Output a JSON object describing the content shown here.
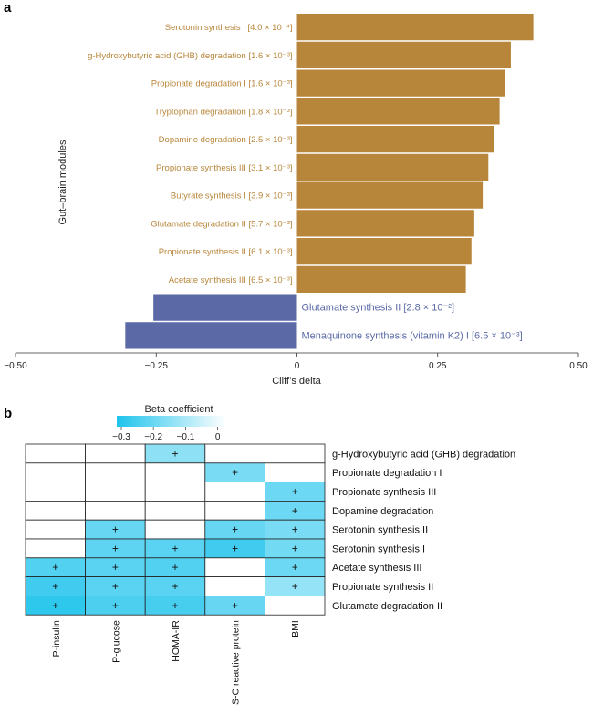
{
  "figure": {
    "panel_a_label": "a",
    "panel_b_label": "b"
  },
  "chart_data": [
    {
      "type": "bar",
      "orientation": "horizontal",
      "xlabel": "Cliff’s delta",
      "ylabel": "Gut–brain modules",
      "xlim": [
        -0.5,
        0.5
      ],
      "xticks": [
        "−0.50",
        "−0.25",
        "0",
        "0.25",
        "0.50"
      ],
      "categories": [
        "Serotonin synthesis I [4.0 × 10⁻⁴]",
        "g-Hydroxybutyric acid (GHB) degradation [1.6 × 10⁻³]",
        "Propionate degradation I [1.6 × 10⁻³]",
        "Tryptophan degradation [1.8 × 10⁻³]",
        "Dopamine degradation [2.5 × 10⁻³]",
        "Propionate synthesis III [3.1 × 10⁻³]",
        "Butyrate synthesis I [3.9 × 10⁻³]",
        "Glutamate degradation II [5.7 × 10⁻³]",
        "Propionate synthesis II [6.1 × 10⁻³]",
        "Acetate synthesis III [6.5 × 10⁻³]",
        "Glutamate synthesis II [2.8 × 10⁻²]",
        "Menaquinone synthesis (vitamin K2) I [6.5 × 10⁻³]"
      ],
      "values": [
        0.42,
        0.38,
        0.37,
        0.36,
        0.35,
        0.34,
        0.33,
        0.315,
        0.31,
        0.3,
        -0.255,
        -0.305
      ],
      "colors": {
        "positive": "#b8863b",
        "negative": "#5b6aa6"
      },
      "grid": false
    },
    {
      "type": "heatmap",
      "colorbar": {
        "title": "Beta coefficient",
        "ticks": [
          "−0.3",
          "−0.2",
          "−0.1",
          "0"
        ],
        "range": [
          -0.3,
          0
        ],
        "colors": [
          "#1ec3ec",
          "#ffffff"
        ]
      },
      "columns": [
        "P-insulin",
        "P-glucose",
        "HOMA-IR",
        "S-C reactive protein",
        "BMI"
      ],
      "rows": [
        "g-Hydroxybutyric acid (GHB) degradation",
        "Propionate degradation I",
        "Propionate synthesis III",
        "Dopamine degradation",
        "Serotonin synthesis II",
        "Serotonin synthesis I",
        "Acetate synthesis III",
        "Propionate synthesis II",
        "Glutamate degradation II"
      ],
      "values": [
        [
          null,
          null,
          -0.12,
          null,
          null
        ],
        [
          null,
          null,
          null,
          -0.15,
          null
        ],
        [
          null,
          null,
          null,
          null,
          -0.17
        ],
        [
          null,
          null,
          null,
          null,
          -0.17
        ],
        [
          null,
          -0.18,
          null,
          -0.18,
          -0.15
        ],
        [
          null,
          -0.19,
          -0.2,
          -0.24,
          -0.16
        ],
        [
          -0.21,
          -0.2,
          -0.21,
          null,
          -0.17
        ],
        [
          -0.24,
          -0.2,
          -0.2,
          null,
          -0.11
        ],
        [
          -0.27,
          -0.22,
          -0.23,
          -0.18,
          null
        ]
      ],
      "significant_marker": "+",
      "significant": [
        [
          false,
          false,
          true,
          false,
          false
        ],
        [
          false,
          false,
          false,
          true,
          false
        ],
        [
          false,
          false,
          false,
          false,
          true
        ],
        [
          false,
          false,
          false,
          false,
          true
        ],
        [
          false,
          true,
          false,
          true,
          true
        ],
        [
          false,
          true,
          true,
          true,
          true
        ],
        [
          true,
          true,
          true,
          false,
          true
        ],
        [
          true,
          true,
          true,
          false,
          true
        ],
        [
          true,
          true,
          true,
          true,
          false
        ]
      ]
    }
  ]
}
